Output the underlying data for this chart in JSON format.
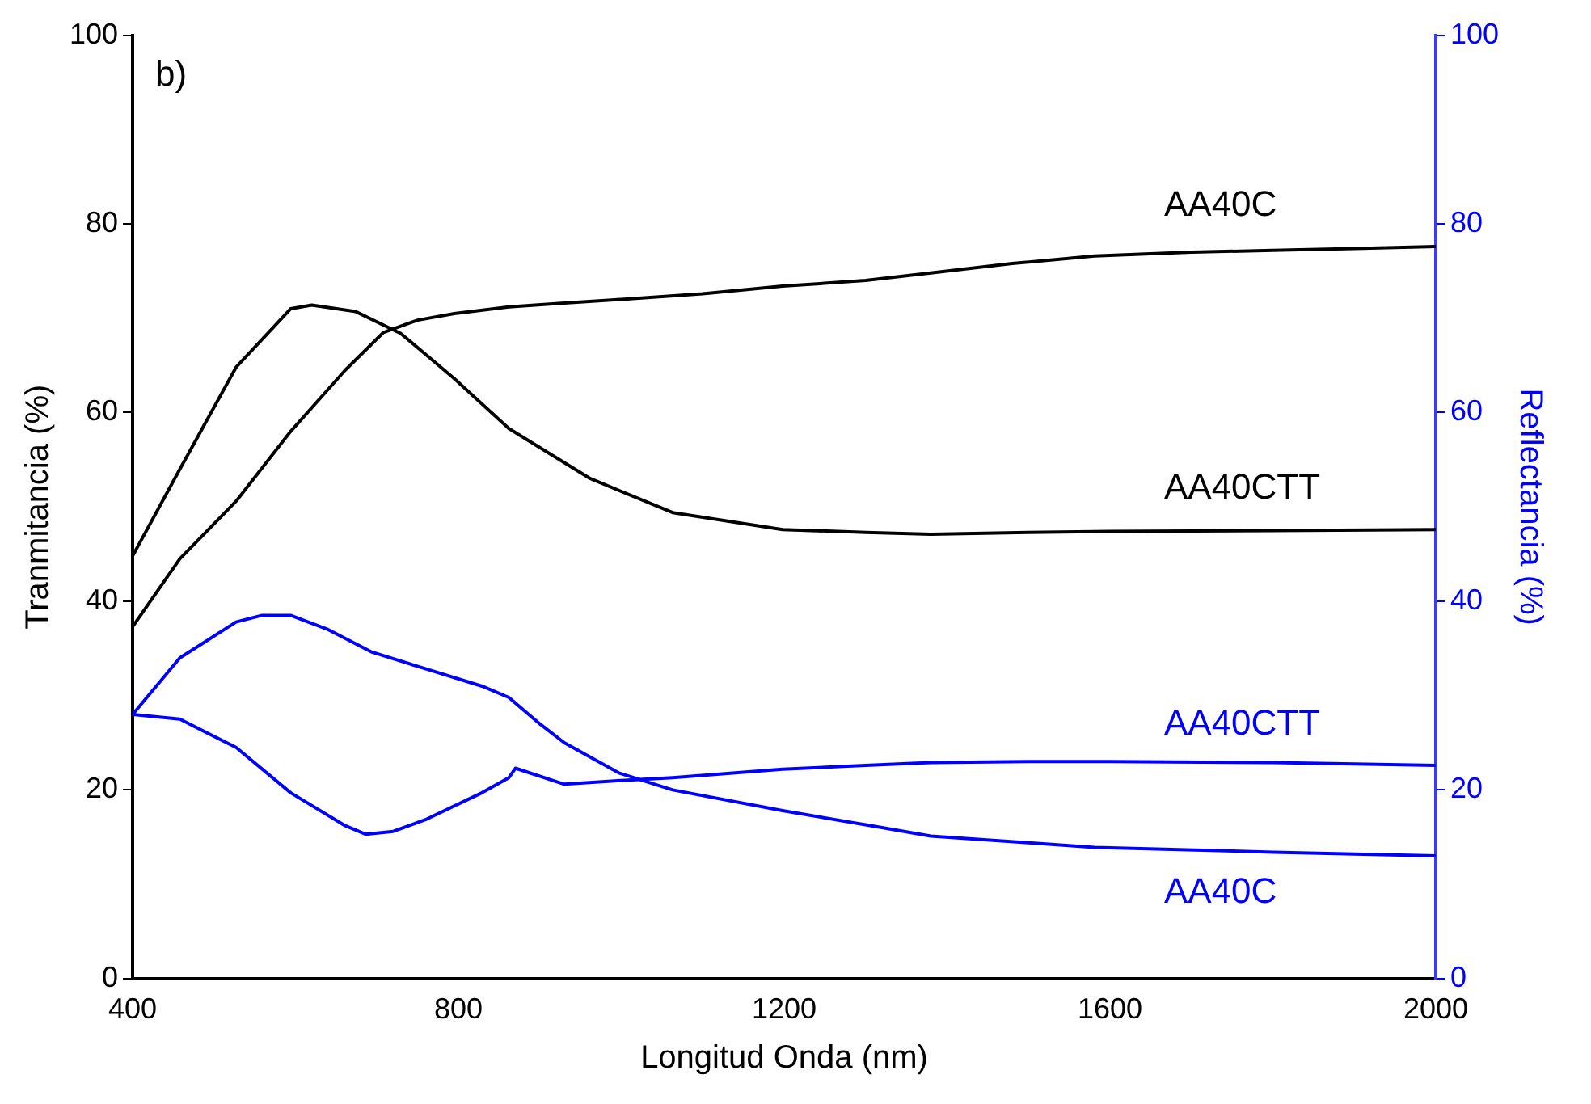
{
  "chart_data": {
    "type": "line",
    "xlabel": "Longitud Onda (nm)",
    "ylabel": "Tranmitancia (%)",
    "y2label": "Reflectancia (%)",
    "annotations": [
      "b)"
    ],
    "xlim": [
      400,
      2000
    ],
    "xticks": [
      400,
      800,
      1200,
      1600,
      2000
    ],
    "ylim": [
      0,
      100
    ],
    "yticks": [
      0,
      20,
      40,
      60,
      80,
      100
    ],
    "y2lim": [
      0,
      100
    ],
    "y2ticks": [
      0,
      20,
      40,
      60,
      80,
      100
    ],
    "grid": false,
    "legend": false,
    "marker": "none",
    "line_style": "solid",
    "series": [
      {
        "name": "AA40C",
        "color": "#000000",
        "x": [
          400,
          458,
          527,
          594,
          661,
          708,
          750,
          795,
          862,
          930,
          1000,
          1100,
          1198,
          1300,
          1380,
          1480,
          1581,
          1700,
          1800,
          1900,
          2000
        ],
        "values": [
          37.3,
          44.5,
          50.6,
          58,
          64.5,
          68.5,
          69.8,
          70.5,
          71.2,
          71.6,
          72,
          72.6,
          73.4,
          74,
          74.8,
          75.8,
          76.6,
          77,
          77.2,
          77.4,
          77.6
        ]
      },
      {
        "name": "AA40CTT",
        "color": "#000000",
        "x": [
          400,
          458,
          527,
          594,
          620,
          674,
          729,
          795,
          862,
          962,
          1063,
          1198,
          1300,
          1380,
          1500,
          1600,
          1800,
          2000
        ],
        "values": [
          44.8,
          54,
          64.8,
          71,
          71.4,
          70.7,
          68.4,
          63.6,
          58.3,
          53,
          49.4,
          47.6,
          47.3,
          47.1,
          47.3,
          47.4,
          47.5,
          47.6
        ]
      },
      {
        "name": "AA40CTT",
        "color": "#0000ff",
        "axis": "y2",
        "x": [
          400,
          458,
          527,
          594,
          661,
          686,
          720,
          761,
          829,
          862,
          870,
          930,
          1000,
          1063,
          1198,
          1300,
          1380,
          1500,
          1600,
          1800,
          2000
        ],
        "values": [
          28,
          27.5,
          24.5,
          19.7,
          16.2,
          15.3,
          15.6,
          16.9,
          19.7,
          21.3,
          22.3,
          20.6,
          21,
          21.3,
          22.2,
          22.6,
          22.9,
          23,
          23,
          22.9,
          22.6
        ]
      },
      {
        "name": "AA40C",
        "color": "#0000ff",
        "axis": "y2",
        "x": [
          400,
          458,
          527,
          559,
          594,
          640,
          694,
          761,
          829,
          862,
          900,
          930,
          997,
          1063,
          1198,
          1300,
          1380,
          1500,
          1581,
          1800,
          2000
        ],
        "values": [
          28,
          34,
          37.8,
          38.5,
          38.5,
          37,
          34.6,
          32.8,
          31,
          29.8,
          27,
          25,
          21.8,
          20,
          17.8,
          16.3,
          15.1,
          14.4,
          13.9,
          13.4,
          13
        ]
      }
    ]
  }
}
